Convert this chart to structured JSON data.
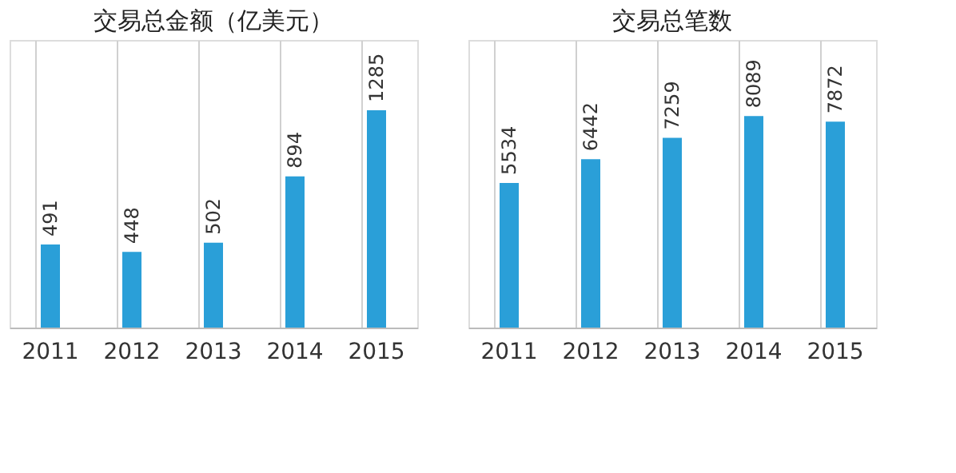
{
  "chart_data": [
    {
      "type": "bar",
      "title": "交易总金额（亿美元）",
      "categories": [
        "2011",
        "2012",
        "2013",
        "2014",
        "2015"
      ],
      "values": [
        491,
        448,
        502,
        894,
        1285
      ],
      "color": "#2a9fd8",
      "ylim": [
        0,
        1700
      ],
      "data_labels": true,
      "grid": "x"
    },
    {
      "type": "bar",
      "title": "交易总笔数",
      "categories": [
        "2011",
        "2012",
        "2013",
        "2014",
        "2015"
      ],
      "values": [
        5534,
        6442,
        7259,
        8089,
        7872
      ],
      "color": "#2a9fd8",
      "ylim": [
        0,
        11000
      ],
      "data_labels": true,
      "grid": "x"
    }
  ]
}
